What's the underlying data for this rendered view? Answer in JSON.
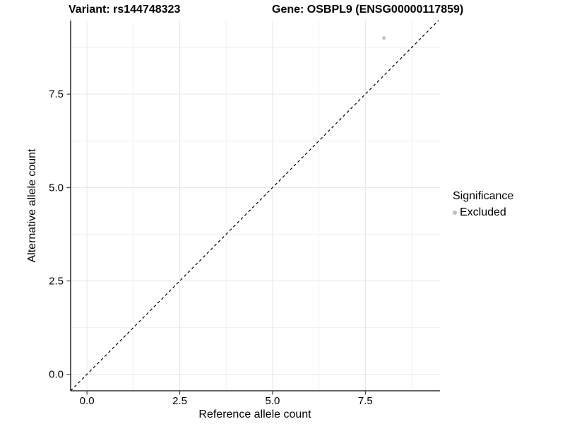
{
  "titles": {
    "left": "Variant: rs144748323",
    "right": "Gene: OSBPL9 (ENSG00000117859)"
  },
  "axes": {
    "x": {
      "label": "Reference allele count",
      "tick_labels": [
        "0.0",
        "2.5",
        "5.0",
        "7.5"
      ]
    },
    "y": {
      "label": "Alternative allele count",
      "tick_labels": [
        "0.0",
        "2.5",
        "5.0",
        "7.5"
      ]
    }
  },
  "legend": {
    "title": "Significance",
    "items": [
      {
        "label": "Excluded",
        "color": "#bebebe",
        "marker": "dot-icon"
      }
    ]
  },
  "chart_data": {
    "type": "scatter",
    "titles": [
      "Variant: rs144748323",
      "Gene: OSBPL9 (ENSG00000117859)"
    ],
    "xlabel": "Reference allele count",
    "ylabel": "Alternative allele count",
    "points": [
      {
        "x": 8,
        "y": 9,
        "series": "Excluded"
      }
    ],
    "series": [
      {
        "name": "Excluded",
        "color": "#c0c0c0"
      }
    ],
    "reference_line": {
      "slope": 1,
      "intercept": 0,
      "style": "dashed",
      "color": "#000000"
    },
    "x": {
      "breaks": [
        0,
        2.5,
        5,
        7.5
      ],
      "tick_labels": [
        "0.0",
        "2.5",
        "5.0",
        "7.5"
      ],
      "minor_breaks": [
        1.25,
        3.75,
        6.25,
        8.75
      ],
      "range": [
        -0.44,
        9.51
      ]
    },
    "y": {
      "breaks": [
        0,
        2.5,
        5,
        7.5
      ],
      "tick_labels": [
        "0.0",
        "2.5",
        "5.0",
        "7.5"
      ],
      "minor_breaks": [
        1.25,
        3.75,
        6.25,
        8.75
      ],
      "range": [
        -0.44,
        9.47
      ]
    },
    "legend_position": "right",
    "grid": true,
    "colors": {
      "grid_major": "#e6e6e6",
      "grid_minor": "#f1f1f1",
      "axis_line": "#333333",
      "tick_label": "#000000"
    }
  }
}
